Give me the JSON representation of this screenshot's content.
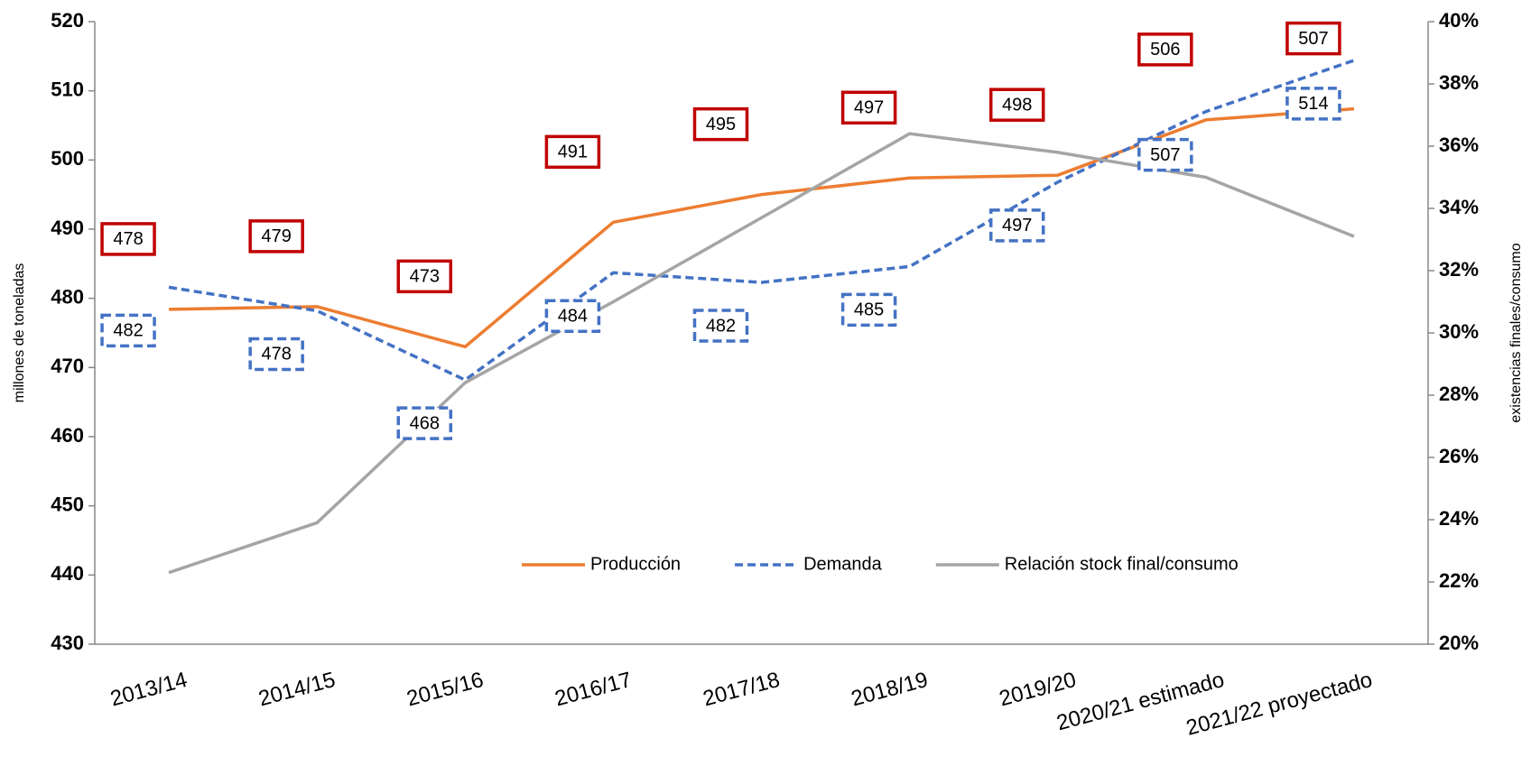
{
  "chart_data": {
    "type": "line",
    "categories": [
      "2013/14",
      "2014/15",
      "2015/16",
      "2016/17",
      "2017/18",
      "2018/19",
      "2019/20",
      "2020/21 estimado",
      "2021/22 proyectado"
    ],
    "ylabel": "millones de toneladas",
    "y2label": "existencias finales/consumo",
    "ylim": [
      430,
      520
    ],
    "yticks": [
      430,
      440,
      450,
      460,
      470,
      480,
      490,
      500,
      510,
      520
    ],
    "y2lim": [
      20,
      40
    ],
    "y2ticks": [
      {
        "value": 20,
        "label": "20%"
      },
      {
        "value": 22,
        "label": "22%"
      },
      {
        "value": 24,
        "label": "24%"
      },
      {
        "value": 26,
        "label": "26%"
      },
      {
        "value": 28,
        "label": "28%"
      },
      {
        "value": 30,
        "label": "30%"
      },
      {
        "value": 32,
        "label": "32%"
      },
      {
        "value": 34,
        "label": "34%"
      },
      {
        "value": 36,
        "label": "36%"
      },
      {
        "value": 38,
        "label": "38%"
      },
      {
        "value": 40,
        "label": "40%"
      }
    ],
    "legend": "lower center",
    "series": [
      {
        "name": "Producción",
        "color": "#ed7d31",
        "line_style": "solid",
        "label_box": "#c00000",
        "values": [
          478.4,
          478.8,
          473,
          491,
          495,
          497.4,
          497.8,
          505.8,
          507.4
        ],
        "value_labels": [
          "478",
          "479",
          "473",
          "491",
          "495",
          "497",
          "498",
          "506",
          "507"
        ]
      },
      {
        "name": "Demanda",
        "color": "#4472c4",
        "line_style": "dashed",
        "label_box": "#4472c4",
        "values": [
          481.6,
          478.2,
          468.2,
          483.7,
          482.3,
          484.6,
          496.8,
          507.0,
          514.4
        ],
        "value_labels": [
          "482",
          "478",
          "468",
          "484",
          "482",
          "485",
          "497",
          "507",
          "514"
        ]
      },
      {
        "name": "Relación stock final/consumo",
        "color": "#a5a5a5",
        "line_style": "solid",
        "axis": "y2",
        "values": [
          22.3,
          23.9,
          28.4,
          31.0,
          33.7,
          36.4,
          35.8,
          35.0,
          33.1
        ]
      }
    ]
  }
}
